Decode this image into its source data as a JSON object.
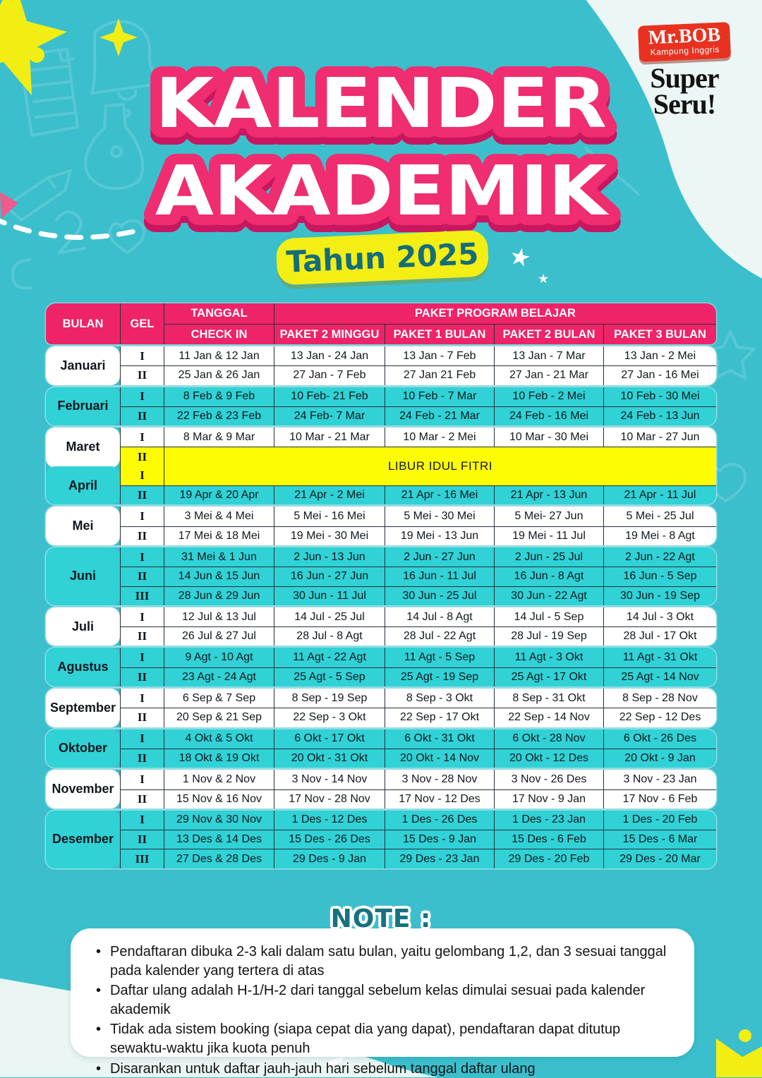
{
  "poster": {
    "title_line1": "KALENDER",
    "title_line2": "AKADEMIK",
    "year_badge": "Tahun 2025",
    "logo": {
      "brand": "Mr.BOB",
      "brand_sub": "Kampung Inggris",
      "tagline_line1": "Super",
      "tagline_line2": "Seru!"
    }
  },
  "colors": {
    "background_teal": "#3bbfcd",
    "header_pink": "#ef2368",
    "row_cyan": "#30d2d6",
    "libur_yellow": "#fdfc05",
    "badge_yellow": "#f3ee14",
    "dark_teal_text": "#156d7a",
    "logo_red": "#e8321f"
  },
  "table": {
    "header": {
      "bulan": "BULAN",
      "gel": "GEL",
      "tanggal": "TANGGAL",
      "check_in": "CHECK IN",
      "paket_group": "PAKET PROGRAM BELAJAR",
      "paket_cols": [
        "PAKET 2 MINGGU",
        "PAKET 1 BULAN",
        "PAKET 2 BULAN",
        "PAKET 3 BULAN"
      ]
    },
    "libur_label": "LIBUR IDUL FITRI",
    "months": [
      {
        "name": "Januari",
        "tone": "white",
        "rows": [
          {
            "gel": "I",
            "cells": [
              "11 Jan & 12 Jan",
              "13 Jan - 24 Jan",
              "13 Jan - 7 Feb",
              "13 Jan - 7 Mar",
              "13 Jan - 2 Mei"
            ]
          },
          {
            "gel": "II",
            "cells": [
              "25 Jan & 26 Jan",
              "27 Jan - 7 Feb",
              "27 Jan 21 Feb",
              "27 Jan - 21 Mar",
              "27 Jan - 16 Mei"
            ]
          }
        ]
      },
      {
        "name": "Februari",
        "tone": "cyan",
        "rows": [
          {
            "gel": "I",
            "cells": [
              "8 Feb & 9 Feb",
              "10 Feb- 21 Feb",
              "10 Feb - 7 Mar",
              "10 Feb - 2 Mei",
              "10 Feb - 30 Mei"
            ]
          },
          {
            "gel": "II",
            "cells": [
              "22 Feb & 23 Feb",
              "24 Feb- 7 Mar",
              "24 Feb - 21 Mar",
              "24 Feb - 16 Mei",
              "24 Feb - 13 Jun"
            ]
          }
        ]
      },
      {
        "name": "Maret",
        "tone": "white",
        "rows": [
          {
            "gel": "I",
            "cells": [
              "8 Mar & 9 Mar",
              "10 Mar - 21 Mar",
              "10 Mar - 2 Mei",
              "10 Mar - 30 Mei",
              "10 Mar - 27 Jun"
            ]
          },
          {
            "gel": "II",
            "libur": true
          }
        ]
      },
      {
        "name": "April",
        "tone": "cyan",
        "rows": [
          {
            "gel": "I",
            "libur": true
          },
          {
            "gel": "II",
            "cells": [
              "19 Apr & 20 Apr",
              "21 Apr - 2 Mei",
              "21 Apr - 16 Mei",
              "21 Apr - 13 Jun",
              "21 Apr - 11 Jul"
            ]
          }
        ]
      },
      {
        "name": "Mei",
        "tone": "white",
        "rows": [
          {
            "gel": "I",
            "cells": [
              "3 Mei & 4 Mei",
              "5 Mei - 16 Mei",
              "5 Mei - 30 Mei",
              "5 Mei- 27 Jun",
              "5 Mei - 25 Jul"
            ]
          },
          {
            "gel": "II",
            "cells": [
              "17 Mei & 18 Mei",
              "19 Mei - 30 Mei",
              "19 Mei - 13 Jun",
              "19 Mei - 11 Jul",
              "19 Mei - 8 Agt"
            ]
          }
        ]
      },
      {
        "name": "Juni",
        "tone": "cyan",
        "rows": [
          {
            "gel": "I",
            "cells": [
              "31 Mei & 1 Jun",
              "2 Jun - 13 Jun",
              "2 Jun - 27 Jun",
              "2 Jun - 25 Jul",
              "2 Jun - 22 Agt"
            ]
          },
          {
            "gel": "II",
            "cells": [
              "14 Jun & 15 Jun",
              "16 Jun - 27 Jun",
              "16 Jun - 11 Jul",
              "16 Jun - 8 Agt",
              "16 Jun - 5 Sep"
            ]
          },
          {
            "gel": "III",
            "cells": [
              "28 Jun & 29 Jun",
              "30 Jun - 11 Jul",
              "30 Jun - 25 Jul",
              "30 Jun - 22 Agt",
              "30 Jun - 19 Sep"
            ]
          }
        ]
      },
      {
        "name": "Juli",
        "tone": "white",
        "rows": [
          {
            "gel": "I",
            "cells": [
              "12 Jul & 13 Jul",
              "14 Jul - 25 Jul",
              "14 Jul - 8 Agt",
              "14 Jul - 5 Sep",
              "14 Jul - 3 Okt"
            ]
          },
          {
            "gel": "II",
            "cells": [
              "26 Jul & 27 Jul",
              "28 Jul - 8 Agt",
              "28 Jul - 22 Agt",
              "28 Jul - 19 Sep",
              "28 Jul - 17 Okt"
            ]
          }
        ]
      },
      {
        "name": "Agustus",
        "tone": "cyan",
        "rows": [
          {
            "gel": "I",
            "cells": [
              "9 Agt - 10 Agt",
              "11 Agt - 22 Agt",
              "11 Agt - 5 Sep",
              "11 Agt - 3 Okt",
              "11 Agt - 31 Okt"
            ]
          },
          {
            "gel": "II",
            "cells": [
              "23 Agt - 24 Agt",
              "25 Agt - 5 Sep",
              "25 Agt - 19 Sep",
              "25 Agt - 17 Okt",
              "25 Agt - 14 Nov"
            ]
          }
        ]
      },
      {
        "name": "September",
        "tone": "white",
        "rows": [
          {
            "gel": "I",
            "cells": [
              "6 Sep & 7 Sep",
              "8 Sep - 19 Sep",
              "8 Sep - 3 Okt",
              "8 Sep - 31 Okt",
              "8 Sep - 28 Nov"
            ]
          },
          {
            "gel": "II",
            "cells": [
              "20 Sep & 21 Sep",
              "22 Sep - 3 Okt",
              "22 Sep - 17 Okt",
              "22 Sep - 14 Nov",
              "22 Sep - 12 Des"
            ]
          }
        ]
      },
      {
        "name": "Oktober",
        "tone": "cyan",
        "rows": [
          {
            "gel": "I",
            "cells": [
              "4 Okt & 5 Okt",
              "6 Okt - 17 Okt",
              "6 Okt - 31 Okt",
              "6 Okt - 28 Nov",
              "6 Okt - 26 Des"
            ]
          },
          {
            "gel": "II",
            "cells": [
              "18 Okt & 19 Okt",
              "20 Okt - 31 Okt",
              "20 Okt - 14 Nov",
              "20 Okt - 12 Des",
              "20 Okt - 9 Jan"
            ]
          }
        ]
      },
      {
        "name": "November",
        "tone": "white",
        "rows": [
          {
            "gel": "I",
            "cells": [
              "1 Nov & 2 Nov",
              "3 Nov - 14 Nov",
              "3 Nov - 28 Nov",
              "3 Nov - 26 Des",
              "3 Nov - 23 Jan"
            ]
          },
          {
            "gel": "II",
            "cells": [
              "15 Nov & 16 Nov",
              "17 Nov - 28 Nov",
              "17 Nov - 12 Des",
              "17 Nov - 9 Jan",
              "17 Nov - 6 Feb"
            ]
          }
        ]
      },
      {
        "name": "Desember",
        "tone": "cyan",
        "rows": [
          {
            "gel": "I",
            "cells": [
              "29 Nov & 30 Nov",
              "1 Des - 12 Des",
              "1 Des - 26 Des",
              "1 Des - 23 Jan",
              "1 Des - 20 Feb"
            ]
          },
          {
            "gel": "II",
            "cells": [
              "13 Des & 14 Des",
              "15 Des - 26 Des",
              "15 Des - 9 Jan",
              "15 Des - 6 Feb",
              "15 Des - 6 Mar"
            ]
          },
          {
            "gel": "III",
            "cells": [
              "27 Des & 28 Des",
              "29 Des - 9 Jan",
              "29 Des - 23 Jan",
              "29 Des - 20 Feb",
              "29 Des - 20 Mar"
            ]
          }
        ]
      }
    ]
  },
  "note": {
    "title": "NOTE :",
    "bullets": [
      "Pendaftaran dibuka 2-3 kali dalam satu bulan, yaitu gelombang 1,2, dan 3 sesuai tanggal pada kalender yang tertera di atas",
      "Daftar ulang adalah H-1/H-2 dari tanggal sebelum kelas dimulai sesuai pada kalender akademik",
      "Tidak ada sistem booking (siapa cepat dia yang dapat), pendaftaran dapat ditutup sewaktu-waktu jika kuota penuh",
      "Disarankan untuk daftar jauh-jauh hari sebelum tanggal daftar ulang"
    ]
  }
}
